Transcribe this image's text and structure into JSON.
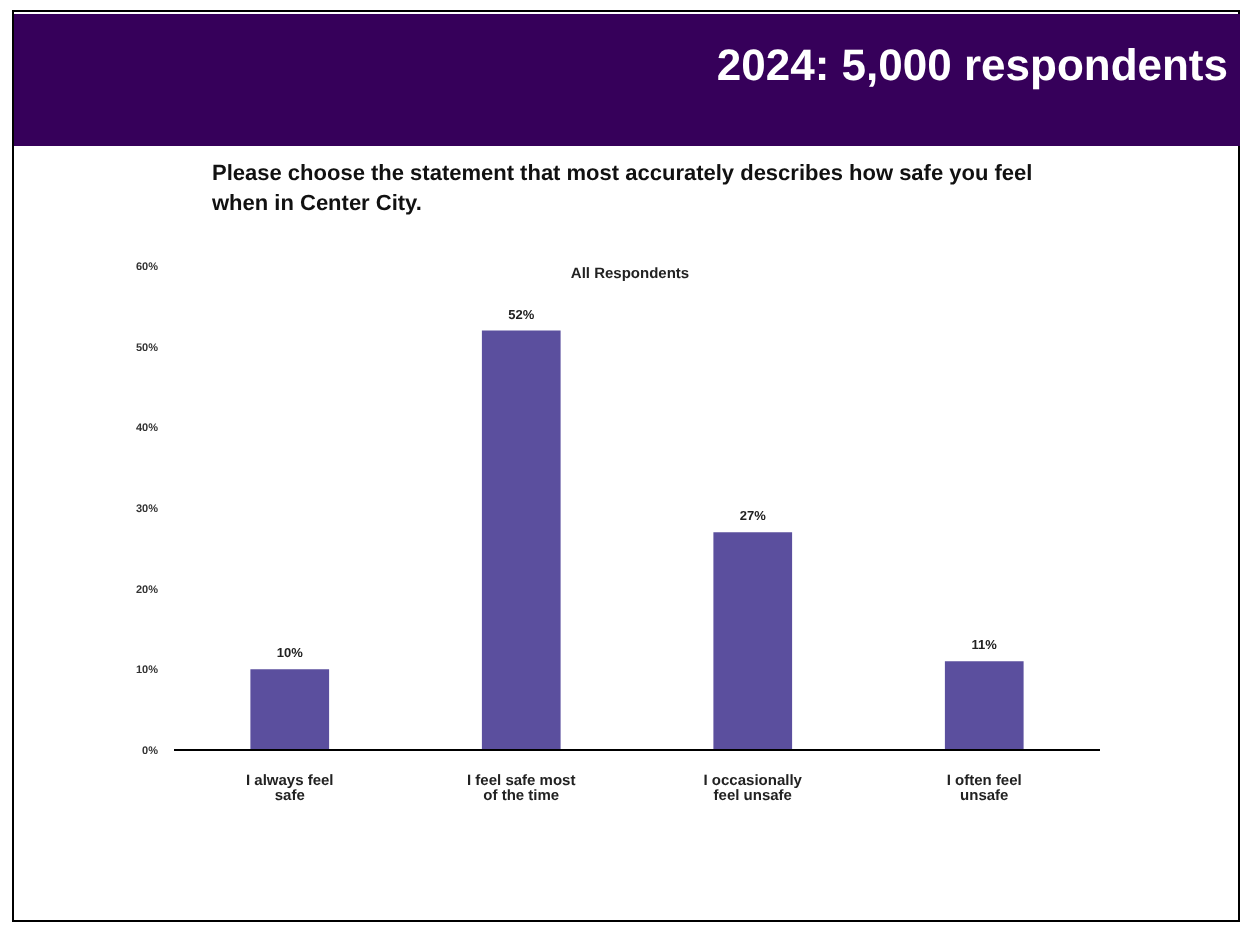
{
  "chart_data": {
    "type": "bar",
    "title": "2024: 5,000 respondents",
    "subtitle": "Please choose the statement that most accurately describes how safe you feel when in Center City.",
    "annotations": [
      "All Respondents"
    ],
    "categories": [
      "I always feel safe",
      "I feel safe most of the time",
      "I occasionally feel unsafe",
      "I often feel unsafe"
    ],
    "values": [
      10,
      52,
      27,
      11
    ],
    "value_labels": [
      "10%",
      "52%",
      "27%",
      "11%"
    ],
    "color": "#5b4f9e",
    "ylim": [
      0,
      60
    ],
    "yticks": [
      {
        "value": 0,
        "label": "0%"
      },
      {
        "value": 10,
        "label": "10%"
      },
      {
        "value": 20,
        "label": "20%"
      },
      {
        "value": 30,
        "label": "30%"
      },
      {
        "value": 40,
        "label": "40%"
      },
      {
        "value": 50,
        "label": "50%"
      },
      {
        "value": 60,
        "label": "60%"
      }
    ],
    "grid": false,
    "legend": false
  }
}
